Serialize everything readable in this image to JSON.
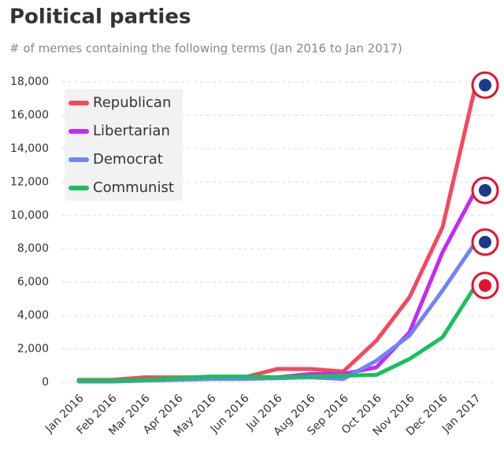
{
  "chart_data": {
    "type": "line",
    "title": "Political parties",
    "subtitle": "# of memes containing the following terms (Jan 2016 to Jan 2017)",
    "categories": [
      "Jan 2016",
      "Feb 2016",
      "Mar 2016",
      "Apr 2016",
      "May 2016",
      "Jun 2016",
      "Jul 2016",
      "Aug 2016",
      "Sep 2016",
      "Oct 2016",
      "Nov 2016",
      "Dec 2016",
      "Jan 2017"
    ],
    "series": [
      {
        "name": "Republican",
        "color": "#f7475b",
        "values": [
          150,
          150,
          300,
          300,
          300,
          300,
          800,
          800,
          650,
          2500,
          5100,
          9300,
          17800
        ]
      },
      {
        "name": "Libertarian",
        "color": "#c728f5",
        "values": [
          100,
          100,
          150,
          200,
          250,
          250,
          300,
          500,
          500,
          900,
          3000,
          7800,
          11500
        ]
      },
      {
        "name": "Democrat",
        "color": "#6f84f7",
        "values": [
          50,
          50,
          100,
          150,
          200,
          200,
          250,
          300,
          200,
          1300,
          2800,
          5500,
          8400
        ]
      },
      {
        "name": "Communist",
        "color": "#17c15c",
        "values": [
          100,
          100,
          150,
          250,
          350,
          350,
          300,
          350,
          400,
          450,
          1400,
          2700,
          5800
        ]
      }
    ],
    "ylim": [
      0,
      18000
    ],
    "yticks": [
      0,
      {
        "value": 2000,
        "label": "2,000"
      },
      {
        "value": 4000,
        "label": "4,000"
      },
      {
        "value": 6000,
        "label": "6,000"
      },
      {
        "value": 8000,
        "label": "8,000"
      },
      {
        "value": 10000,
        "label": "10,000"
      },
      {
        "value": 12000,
        "label": "12,000"
      },
      {
        "value": 14000,
        "label": "14,000"
      },
      {
        "value": 16000,
        "label": "16,000"
      },
      {
        "value": 18000,
        "label": "18,000"
      }
    ],
    "grid": true,
    "legend": "top-left"
  }
}
